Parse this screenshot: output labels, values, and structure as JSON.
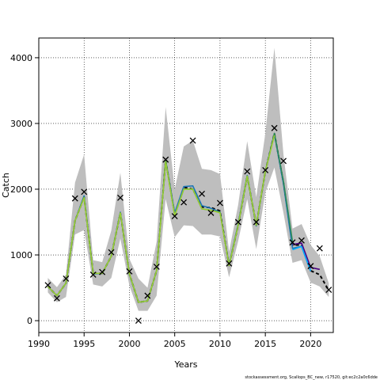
{
  "chart_data": {
    "type": "line",
    "xlabel": "Years",
    "ylabel": "Catch",
    "xlim": [
      1990,
      2022.5
    ],
    "ylim": [
      -180,
      4300
    ],
    "x_ticks": [
      1990,
      1995,
      2000,
      2005,
      2010,
      2015,
      2020
    ],
    "y_ticks": [
      0,
      1000,
      2000,
      3000,
      4000
    ],
    "grid": "dotted",
    "footer": "stockassessment.org, Scallops_BC_new, r17520, git:ec2c2a0c6dde",
    "x": [
      1991,
      1992,
      1993,
      1994,
      1995,
      1996,
      1997,
      1998,
      1999,
      2000,
      2001,
      2002,
      2003,
      2004,
      2005,
      2006,
      2007,
      2008,
      2009,
      2010,
      2011,
      2012,
      2013,
      2014,
      2015,
      2016,
      2017,
      2018,
      2019,
      2020,
      2021,
      2022
    ],
    "band": {
      "color": "#bebebe",
      "lower": [
        430,
        280,
        360,
        1310,
        1380,
        550,
        520,
        650,
        1250,
        530,
        150,
        150,
        380,
        1850,
        1270,
        1450,
        1440,
        1310,
        1310,
        1280,
        660,
        1210,
        1850,
        1090,
        1950,
        2330,
        1640,
        880,
        920,
        580,
        520,
        360
      ],
      "upper": [
        650,
        510,
        700,
        2100,
        2530,
        920,
        890,
        1370,
        2250,
        940,
        640,
        500,
        1200,
        3250,
        2000,
        2650,
        2740,
        2310,
        2290,
        2230,
        1050,
        1760,
        2730,
        1880,
        2850,
        4150,
        2530,
        1400,
        1470,
        1150,
        980,
        570
      ]
    },
    "series": [
      {
        "color": "#000000",
        "values": [
          520,
          380,
          570,
          1520,
          1880,
          720,
          720,
          980,
          1640,
          710,
          280,
          300,
          760,
          2440,
          1620,
          2030,
          2000,
          1730,
          1720,
          1670,
          840,
          1450,
          2200,
          1450,
          2270,
          2850,
          2100,
          1150,
          1150,
          760,
          700,
          460
        ]
      },
      {
        "color": "#1f77b4",
        "values": [
          520,
          380,
          570,
          1520,
          1900,
          710,
          720,
          980,
          1650,
          700,
          280,
          300,
          760,
          2440,
          1640,
          2040,
          2050,
          1750,
          1710,
          1650,
          850,
          1470,
          2210,
          1440,
          2270,
          2840,
          2080,
          1100,
          1130,
          750,
          null,
          null
        ]
      },
      {
        "color": "#4b0082",
        "values": [
          null,
          null,
          null,
          null,
          null,
          null,
          null,
          null,
          null,
          null,
          null,
          null,
          null,
          null,
          null,
          null,
          null,
          null,
          null,
          null,
          null,
          null,
          null,
          null,
          null,
          null,
          null,
          1160,
          1180,
          810,
          780,
          null
        ]
      },
      {
        "color": "#00aaff",
        "values": [
          null,
          null,
          null,
          null,
          null,
          null,
          null,
          null,
          null,
          null,
          null,
          null,
          null,
          null,
          null,
          null,
          null,
          null,
          null,
          null,
          null,
          null,
          null,
          null,
          null,
          null,
          null,
          1080,
          1130,
          760,
          null,
          null
        ]
      },
      {
        "color": "#2e8b57",
        "values": [
          520,
          380,
          570,
          1520,
          1880,
          720,
          720,
          980,
          1640,
          710,
          280,
          300,
          760,
          2440,
          1600,
          2000,
          2000,
          1700,
          1680,
          1650,
          840,
          1450,
          2200,
          1450,
          2270,
          2850,
          2120,
          1200,
          null,
          null,
          null,
          null
        ]
      },
      {
        "color": "#9acd32",
        "values": [
          520,
          380,
          570,
          1520,
          1870,
          720,
          720,
          980,
          1640,
          710,
          280,
          300,
          760,
          2420,
          1600,
          2000,
          2000,
          1700,
          1680,
          1640,
          840,
          1450,
          2200,
          1450,
          2270,
          2820,
          null,
          null,
          null,
          null,
          null,
          null
        ]
      }
    ],
    "observations": {
      "marker": "x",
      "x": [
        1991,
        1992,
        1993,
        1994,
        1995,
        1996,
        1997,
        1998,
        1999,
        2000,
        2001,
        2002,
        2003,
        2004,
        2005,
        2006,
        2007,
        2008,
        2009,
        2010,
        2011,
        2012,
        2013,
        2014,
        2015,
        2016,
        2017,
        2018,
        2019,
        2020,
        2021,
        2022
      ],
      "y": [
        540,
        340,
        640,
        1860,
        1960,
        700,
        740,
        1040,
        1870,
        750,
        0,
        380,
        820,
        2450,
        1590,
        1800,
        2740,
        1930,
        1640,
        1790,
        870,
        1500,
        2270,
        1500,
        2290,
        2930,
        2430,
        1190,
        1220,
        830,
        1100,
        470
      ]
    }
  }
}
